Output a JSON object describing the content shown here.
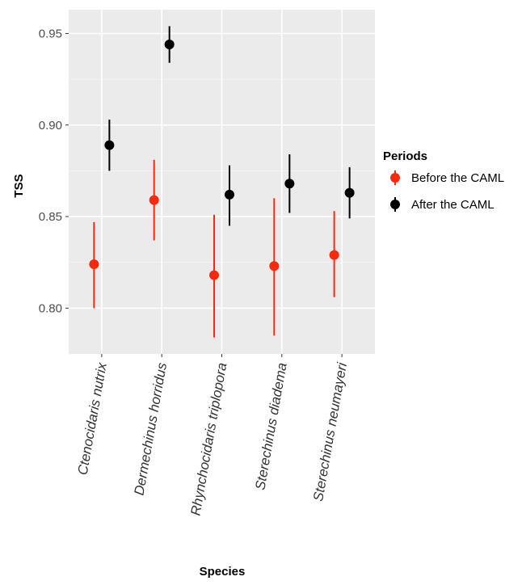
{
  "chart_data": {
    "type": "scatter",
    "xlabel": "Species",
    "ylabel": "TSS",
    "ylim": [
      0.775,
      0.963
    ],
    "yticks": [
      0.8,
      0.85,
      0.9,
      0.95
    ],
    "ytick_labels": [
      "0.80",
      "0.85",
      "0.90",
      "0.95"
    ],
    "categories": [
      "Ctenocidaris nutrix",
      "Dermechinus horridus",
      "Rhynchocidaris triplopora",
      "Sterechinus diadema",
      "Sterechinus neumayeri"
    ],
    "grid": true,
    "legend_title": "Periods",
    "legend_position": "right",
    "series": [
      {
        "name": "Before the CAML",
        "color": "#f8290d",
        "values": [
          0.824,
          0.859,
          0.818,
          0.823,
          0.829
        ],
        "lower": [
          0.8,
          0.837,
          0.784,
          0.785,
          0.806
        ],
        "upper": [
          0.847,
          0.881,
          0.851,
          0.86,
          0.853
        ]
      },
      {
        "name": "After the CAML",
        "color": "#000000",
        "values": [
          0.889,
          0.944,
          0.862,
          0.868,
          0.863
        ],
        "lower": [
          0.875,
          0.934,
          0.845,
          0.852,
          0.849
        ],
        "upper": [
          0.903,
          0.954,
          0.878,
          0.884,
          0.877
        ]
      }
    ]
  }
}
